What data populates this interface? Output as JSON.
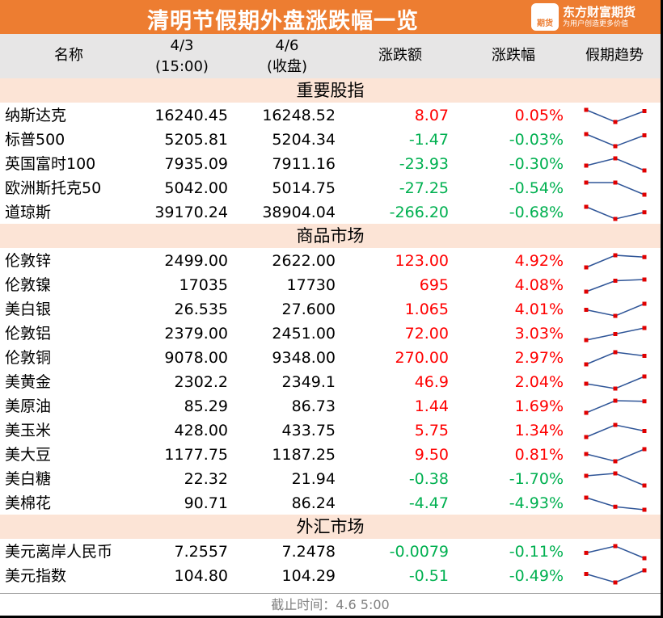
{
  "title": "清明节假期外盘涨跌幅一览",
  "logo": {
    "badge": "期货",
    "name": "东方财富期货",
    "slogan": "为用户创造更多价值"
  },
  "columns": {
    "name": "名称",
    "d1": "4/3",
    "d1_sub": "(15:00)",
    "d2": "4/6",
    "d2_sub": "(收盘)",
    "chg": "涨跌额",
    "pct": "涨跌幅",
    "trend": "假期趋势"
  },
  "colors": {
    "header": "#ED7D31",
    "up": "#FF0000",
    "down": "#00B050",
    "section": "#FCE4D6"
  },
  "sections": [
    {
      "title": "重要股指",
      "rows": [
        {
          "name": "纳斯达克",
          "d1": "16240.45",
          "d2": "16248.52",
          "chg": "8.07",
          "pct": "0.05%",
          "dir": "up",
          "trend": [
            1,
            0,
            0.9
          ]
        },
        {
          "name": "标普500",
          "d1": "5205.81",
          "d2": "5204.34",
          "chg": "-1.47",
          "pct": "-0.03%",
          "dir": "dn",
          "trend": [
            1,
            0,
            0.9
          ]
        },
        {
          "name": "英国富时100",
          "d1": "7935.09",
          "d2": "7911.16",
          "chg": "-23.93",
          "pct": "-0.30%",
          "dir": "dn",
          "trend": [
            0.4,
            1,
            0
          ]
        },
        {
          "name": "欧洲斯托克50",
          "d1": "5042.00",
          "d2": "5014.75",
          "chg": "-27.25",
          "pct": "-0.54%",
          "dir": "dn",
          "trend": [
            1,
            1,
            0
          ]
        },
        {
          "name": "道琼斯",
          "d1": "39170.24",
          "d2": "38904.04",
          "chg": "-266.20",
          "pct": "-0.68%",
          "dir": "dn",
          "trend": [
            1,
            0,
            0.55
          ]
        }
      ]
    },
    {
      "title": "商品市场",
      "rows": [
        {
          "name": "伦敦锌",
          "d1": "2499.00",
          "d2": "2622.00",
          "chg": "123.00",
          "pct": "4.92%",
          "dir": "up",
          "trend": [
            0,
            1,
            0.85
          ]
        },
        {
          "name": "伦敦镍",
          "d1": "17035",
          "d2": "17730",
          "chg": "695",
          "pct": "4.08%",
          "dir": "up",
          "trend": [
            0,
            0.9,
            1
          ]
        },
        {
          "name": "美白银",
          "d1": "26.535",
          "d2": "27.600",
          "chg": "1.065",
          "pct": "4.01%",
          "dir": "up",
          "trend": [
            0.5,
            0,
            1
          ]
        },
        {
          "name": "伦敦铝",
          "d1": "2379.00",
          "d2": "2451.00",
          "chg": "72.00",
          "pct": "3.03%",
          "dir": "up",
          "trend": [
            0,
            0.5,
            1
          ]
        },
        {
          "name": "伦敦铜",
          "d1": "9078.00",
          "d2": "9348.00",
          "chg": "270.00",
          "pct": "2.97%",
          "dir": "up",
          "trend": [
            0,
            1,
            0.7
          ]
        },
        {
          "name": "美黄金",
          "d1": "2302.2",
          "d2": "2349.1",
          "chg": "46.9",
          "pct": "2.04%",
          "dir": "up",
          "trend": [
            0.4,
            0,
            1
          ]
        },
        {
          "name": "美原油",
          "d1": "85.29",
          "d2": "86.73",
          "chg": "1.44",
          "pct": "1.69%",
          "dir": "up",
          "trend": [
            0,
            1,
            0.95
          ]
        },
        {
          "name": "美玉米",
          "d1": "428.00",
          "d2": "433.75",
          "chg": "5.75",
          "pct": "1.34%",
          "dir": "up",
          "trend": [
            0,
            1,
            0.5
          ]
        },
        {
          "name": "美大豆",
          "d1": "1177.75",
          "d2": "1187.25",
          "chg": "9.50",
          "pct": "0.81%",
          "dir": "up",
          "trend": [
            0.6,
            0,
            1
          ]
        },
        {
          "name": "美白糖",
          "d1": "22.32",
          "d2": "21.94",
          "chg": "-0.38",
          "pct": "-1.70%",
          "dir": "dn",
          "trend": [
            0.8,
            1,
            0
          ]
        },
        {
          "name": "美棉花",
          "d1": "90.71",
          "d2": "86.24",
          "chg": "-4.47",
          "pct": "-4.93%",
          "dir": "dn",
          "trend": [
            1,
            0.25,
            0
          ]
        }
      ]
    },
    {
      "title": "外汇市场",
      "rows": [
        {
          "name": "美元离岸人民币",
          "d1": "7.2557",
          "d2": "7.2478",
          "chg": "-0.0079",
          "pct": "-0.11%",
          "dir": "dn",
          "trend": [
            0.44,
            1,
            0
          ]
        },
        {
          "name": "美元指数",
          "d1": "104.80",
          "d2": "104.29",
          "chg": "-0.51",
          "pct": "-0.49%",
          "dir": "dn",
          "trend": [
            0.7,
            0,
            1
          ]
        }
      ]
    }
  ],
  "footer": "截止时间：4.6 5:00"
}
